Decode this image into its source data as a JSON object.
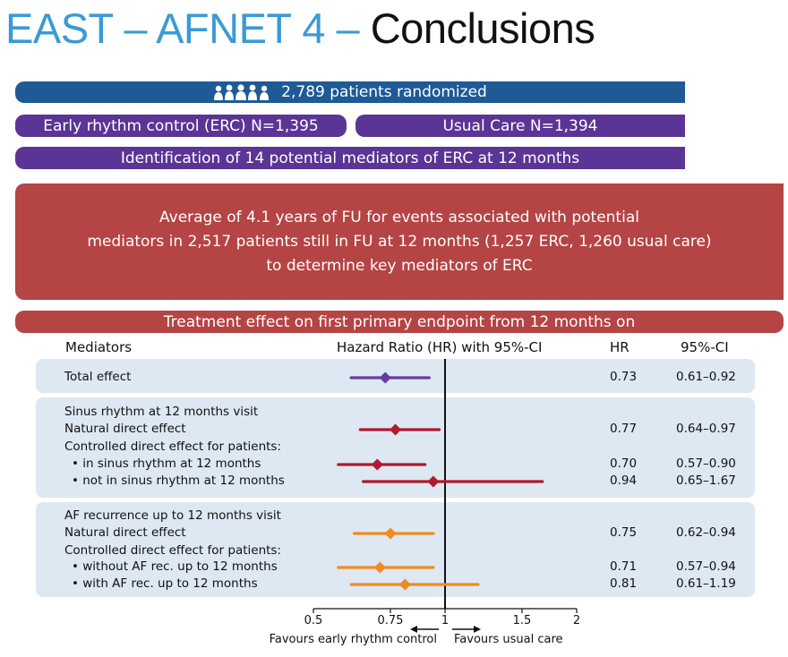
{
  "title": {
    "part1": "EAST – AFNET 4 – ",
    "part2": "Conclusions"
  },
  "randomized": "2,789 patients randomized",
  "arms": {
    "erc": "Early rhythm control (ERC) N=1,395",
    "usual": "Usual Care N=1,394"
  },
  "mediators_bar": "Identification of 14 potential mediators of ERC at 12 months",
  "fu_box": {
    "line1": "Average of 4.1 years of FU for events associated with potential",
    "line2": "mediators in 2,517 patients still in FU at 12 months (1,257 ERC, 1,260 usual care)",
    "line3": "to determine key mediators of ERC"
  },
  "treatment_bar": "Treatment effect on first primary endpoint from 12 months on",
  "headers": {
    "mediators": "Mediators",
    "hr_ci": "Hazard Ratio (HR) with 95%-CI",
    "hr": "HR",
    "ci": "95%-CI"
  },
  "group_labels": {
    "sinus": "Sinus rhythm at 12 months visit",
    "sinus_controlled": "Controlled direct effect for patients:",
    "af": "AF recurrence up to 12 months visit",
    "af_controlled": "Controlled direct effect for patients:"
  },
  "colors": {
    "purple": "#6a3aa0",
    "red": "#b3182f",
    "orange": "#f18a21",
    "blue": "#1f5a96",
    "header_purple": "#5a3595",
    "box_red": "#b54444"
  },
  "chart_data": {
    "type": "forest",
    "xlim": [
      0.5,
      2
    ],
    "xticks": [
      0.5,
      0.75,
      1,
      1.5,
      2
    ],
    "xtick_labels": [
      "0.5",
      "0.75",
      "1",
      "1.5",
      "2"
    ],
    "xlabel_left": "Favours early rhythm control",
    "xlabel_right": "Favours usual care",
    "reference": 1,
    "rows": [
      {
        "label": "Total effect",
        "hr": 0.73,
        "lo": 0.61,
        "hi": 0.92,
        "hr_text": "0.73",
        "ci_text": "0.61–0.92",
        "color": "purple"
      },
      {
        "label": "Natural direct effect",
        "hr": 0.77,
        "lo": 0.64,
        "hi": 0.97,
        "hr_text": "0.77",
        "ci_text": "0.64–0.97",
        "color": "red"
      },
      {
        "label": "• in sinus rhythm at 12 months",
        "hr": 0.7,
        "lo": 0.57,
        "hi": 0.9,
        "hr_text": "0.70",
        "ci_text": "0.57–0.90",
        "color": "red"
      },
      {
        "label": "• not in sinus rhythm at 12 months",
        "hr": 0.94,
        "lo": 0.65,
        "hi": 1.67,
        "hr_text": "0.94",
        "ci_text": "0.65–1.67",
        "color": "red"
      },
      {
        "label": "Natural direct effect",
        "hr": 0.75,
        "lo": 0.62,
        "hi": 0.94,
        "hr_text": "0.75",
        "ci_text": "0.62–0.94",
        "color": "orange"
      },
      {
        "label": "• without AF rec. up to 12 months",
        "hr": 0.71,
        "lo": 0.57,
        "hi": 0.94,
        "hr_text": "0.71",
        "ci_text": "0.57–0.94",
        "color": "orange"
      },
      {
        "label": "• with AF rec. up to 12 months",
        "hr": 0.81,
        "lo": 0.61,
        "hi": 1.19,
        "hr_text": "0.81",
        "ci_text": "0.61–1.19",
        "color": "orange"
      }
    ]
  }
}
